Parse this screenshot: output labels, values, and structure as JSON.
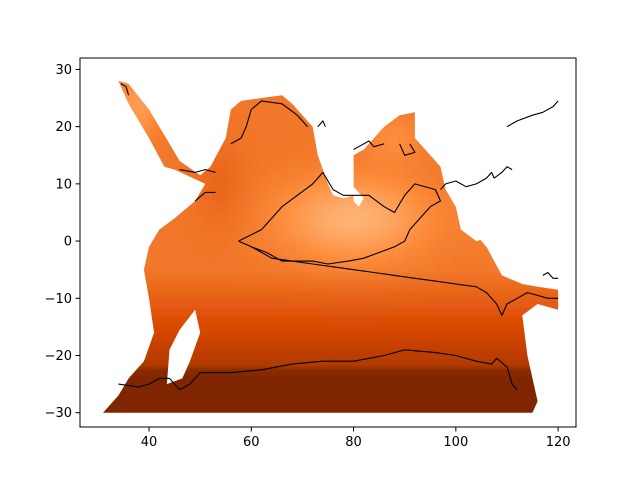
{
  "chart_data": {
    "type": "heatmap",
    "title": "",
    "xlabel": "",
    "ylabel": "",
    "xlim": [
      26.5,
      123.5
    ],
    "ylim": [
      -32.5,
      32
    ],
    "x_ticks": [
      40,
      60,
      80,
      100,
      120
    ],
    "y_ticks": [
      -30,
      -20,
      -10,
      0,
      10,
      20,
      30
    ],
    "grid": false,
    "colormap": "Oranges",
    "colormap_stops": [
      "#fff5eb",
      "#fdd0a2",
      "#fd8d3c",
      "#d94801",
      "#7f2704"
    ],
    "contour_color": "#000000",
    "ocean_mask_outline": [
      [
        34,
        28
      ],
      [
        36,
        27.5
      ],
      [
        40,
        23
      ],
      [
        44,
        17
      ],
      [
        46,
        14
      ],
      [
        50,
        11.5
      ],
      [
        52,
        13
      ],
      [
        55,
        18
      ],
      [
        56,
        23
      ],
      [
        58,
        24.5
      ],
      [
        62,
        25
      ],
      [
        66,
        25.5
      ],
      [
        68,
        24
      ],
      [
        70,
        22
      ],
      [
        72,
        20
      ],
      [
        73,
        15
      ],
      [
        75,
        10
      ],
      [
        76,
        8
      ],
      [
        78,
        7.5
      ],
      [
        80,
        8
      ],
      [
        80,
        12
      ],
      [
        80,
        15
      ],
      [
        82,
        16
      ],
      [
        86,
        20
      ],
      [
        89,
        22
      ],
      [
        92,
        22.5
      ],
      [
        92,
        18
      ],
      [
        94,
        16
      ],
      [
        97,
        13
      ],
      [
        98,
        9
      ],
      [
        100,
        6
      ],
      [
        102,
        3
      ],
      [
        104,
        1
      ],
      [
        106,
        -1
      ],
      [
        109,
        -6
      ],
      [
        113,
        -7.5
      ],
      [
        116,
        -8
      ],
      [
        120,
        -8.5
      ],
      [
        120,
        -12
      ],
      [
        116,
        -11
      ],
      [
        113,
        -13
      ],
      [
        114,
        -20
      ],
      [
        115,
        -24
      ],
      [
        116,
        -28
      ],
      [
        115,
        -30
      ],
      [
        31,
        -30
      ],
      [
        34,
        -27
      ],
      [
        36,
        -24
      ],
      [
        39,
        -21
      ],
      [
        41,
        -16
      ],
      [
        40,
        -10
      ],
      [
        39,
        -5
      ],
      [
        40,
        -1
      ],
      [
        42,
        2
      ],
      [
        45,
        4
      ],
      [
        49,
        7
      ],
      [
        51,
        10
      ],
      [
        45,
        12.5
      ],
      [
        43,
        13
      ],
      [
        40,
        18
      ],
      [
        36,
        24
      ],
      [
        34,
        28
      ]
    ],
    "pacific_mask_outline": [
      [
        100,
        10
      ],
      [
        104,
        12
      ],
      [
        109,
        15
      ],
      [
        113,
        19
      ],
      [
        117,
        22
      ],
      [
        120,
        25
      ],
      [
        120,
        20
      ],
      [
        120,
        14
      ],
      [
        118,
        9
      ],
      [
        117,
        6
      ],
      [
        114,
        4
      ],
      [
        111,
        2
      ],
      [
        108,
        1
      ],
      [
        104,
        0
      ],
      [
        101,
        2
      ],
      [
        100,
        6
      ]
    ],
    "contours": [
      {
        "points": [
          [
            57.5,
            0
          ],
          [
            62,
            2
          ],
          [
            66,
            6
          ],
          [
            69,
            8
          ],
          [
            72,
            10
          ],
          [
            74,
            12
          ],
          [
            76,
            9
          ],
          [
            78,
            8
          ],
          [
            80,
            8
          ],
          [
            83,
            8
          ],
          [
            86,
            6
          ],
          [
            88,
            5
          ],
          [
            90,
            8
          ],
          [
            92,
            10
          ],
          [
            96,
            9
          ],
          [
            97,
            7
          ],
          [
            95,
            6
          ],
          [
            93,
            4
          ],
          [
            91,
            2
          ],
          [
            90,
            0
          ],
          [
            88,
            -1
          ],
          [
            85,
            -2
          ],
          [
            82,
            -3
          ],
          [
            79,
            -3.5
          ],
          [
            75,
            -4
          ],
          [
            72,
            -3.5
          ],
          [
            69,
            -3.5
          ],
          [
            66,
            -3.5
          ],
          [
            63,
            -2
          ],
          [
            60,
            -1
          ],
          [
            57.5,
            0
          ]
        ]
      },
      {
        "points": [
          [
            60,
            -1
          ],
          [
            64,
            -3
          ],
          [
            68,
            -3.5
          ],
          [
            72,
            -4
          ],
          [
            76,
            -4.5
          ],
          [
            80,
            -5
          ],
          [
            84,
            -5.5
          ],
          [
            88,
            -6
          ],
          [
            92,
            -6.5
          ],
          [
            96,
            -7
          ],
          [
            100,
            -7.5
          ],
          [
            104,
            -8
          ],
          [
            106,
            -9
          ],
          [
            108,
            -11
          ],
          [
            109,
            -13
          ],
          [
            110,
            -11
          ],
          [
            112,
            -10
          ],
          [
            114,
            -9
          ],
          [
            116,
            -9.5
          ],
          [
            118,
            -10
          ],
          [
            120,
            -10
          ]
        ]
      },
      {
        "points": [
          [
            34,
            -25
          ],
          [
            38,
            -25.5
          ],
          [
            40,
            -25
          ],
          [
            42,
            -24
          ],
          [
            44,
            -24
          ],
          [
            46,
            -26
          ],
          [
            48,
            -25
          ],
          [
            50,
            -23
          ],
          [
            56,
            -23
          ],
          [
            62,
            -22.5
          ],
          [
            68,
            -21.5
          ],
          [
            74,
            -21
          ],
          [
            80,
            -21
          ],
          [
            86,
            -20
          ],
          [
            90,
            -19
          ],
          [
            96,
            -19.5
          ],
          [
            100,
            -20
          ],
          [
            104,
            -21
          ],
          [
            107,
            -21.5
          ],
          [
            108,
            -20.5
          ],
          [
            110,
            -22
          ],
          [
            111,
            -25
          ],
          [
            112,
            -26
          ]
        ]
      },
      {
        "points": [
          [
            34.5,
            27.5
          ],
          [
            35.5,
            27
          ],
          [
            36,
            25.5
          ]
        ]
      },
      {
        "points": [
          [
            46,
            12.5
          ],
          [
            49,
            12
          ],
          [
            51,
            12.5
          ],
          [
            53,
            12
          ]
        ]
      },
      {
        "points": [
          [
            49,
            7
          ],
          [
            51,
            8.5
          ],
          [
            53,
            8.5
          ]
        ]
      },
      {
        "points": [
          [
            56,
            17
          ],
          [
            58,
            18
          ],
          [
            59,
            20
          ],
          [
            60,
            23
          ],
          [
            62,
            24.5
          ],
          [
            66,
            24
          ],
          [
            69,
            22
          ],
          [
            70,
            21
          ],
          [
            71,
            20
          ]
        ]
      },
      {
        "points": [
          [
            73,
            20
          ],
          [
            74,
            21
          ],
          [
            74.5,
            20
          ]
        ]
      },
      {
        "points": [
          [
            80,
            16
          ],
          [
            81,
            16.5
          ],
          [
            83,
            17.5
          ],
          [
            84,
            16.5
          ],
          [
            86,
            17
          ]
        ]
      },
      {
        "points": [
          [
            89,
            17
          ],
          [
            90,
            15
          ],
          [
            92,
            15.5
          ],
          [
            91,
            17
          ]
        ]
      },
      {
        "points": [
          [
            97,
            9
          ],
          [
            98,
            10
          ],
          [
            100,
            10.5
          ],
          [
            102,
            9.5
          ],
          [
            104,
            10
          ],
          [
            106,
            11
          ],
          [
            107,
            12
          ],
          [
            107.5,
            11
          ],
          [
            109,
            12
          ],
          [
            110,
            13
          ],
          [
            111,
            12.5
          ]
        ]
      },
      {
        "points": [
          [
            110,
            20
          ],
          [
            112,
            21
          ],
          [
            115,
            22
          ],
          [
            117,
            22.5
          ],
          [
            119,
            23.5
          ],
          [
            120,
            24.5
          ]
        ]
      },
      {
        "points": [
          [
            117,
            -6
          ],
          [
            118,
            -5.5
          ],
          [
            119,
            -6.5
          ],
          [
            120,
            -6.5
          ]
        ]
      }
    ],
    "islands": [
      {
        "name": "Madagascar",
        "points": [
          [
            43.5,
            -25
          ],
          [
            46.5,
            -24
          ],
          [
            48,
            -21
          ],
          [
            50,
            -16
          ],
          [
            49,
            -12
          ],
          [
            46,
            -15.5
          ],
          [
            44,
            -19
          ]
        ]
      },
      {
        "name": "Sri Lanka",
        "points": [
          [
            80,
            9.5
          ],
          [
            82,
            7.5
          ],
          [
            81,
            6
          ],
          [
            80,
            7
          ]
        ]
      }
    ]
  }
}
